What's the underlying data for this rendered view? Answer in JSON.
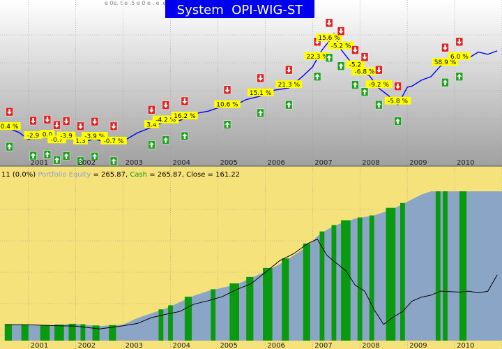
{
  "header": {
    "title": "System  OPI-WIG-ST",
    "title_bg": "#0000ee",
    "title_color": "#ffffff",
    "top_left_text": "e 0e. t e .5 e 0 e . e .e"
  },
  "colors": {
    "top_bg_top": "#ffffff",
    "top_bg_bottom": "#a8a8a8",
    "price_line": "#0000ee",
    "buy_arrow": "#20a020",
    "sell_arrow": "#e02020",
    "trade_label_bg": "#ffff00",
    "bottom_bg": "#f6e27a",
    "equity_fill": "#8ba5c6",
    "cash_bar": "#0a9a10",
    "close_line": "#000000",
    "grid": "#9a9a9a",
    "separator": "#555555"
  },
  "chart_data": [
    {
      "type": "line",
      "title": "System  OPI-WIG-ST",
      "x_labels": [
        "2001",
        "2002",
        "2003",
        "2004",
        "2005",
        "2006",
        "2007",
        "2008",
        "2009",
        "2010",
        "20"
      ],
      "x": [
        2000.5,
        2000.8,
        2001.0,
        2001.3,
        2001.6,
        2001.9,
        2002.1,
        2002.4,
        2002.7,
        2003.0,
        2003.3,
        2003.6,
        2003.9,
        2004.2,
        2004.5,
        2004.8,
        2005.0,
        2005.3,
        2005.6,
        2005.9,
        2006.2,
        2006.5,
        2006.8,
        2007.0,
        2007.2,
        2007.35,
        2007.45,
        2007.6,
        2007.8,
        2008.0,
        2008.2,
        2008.4,
        2008.6,
        2008.8,
        2009.0,
        2009.1,
        2009.3,
        2009.5,
        2009.7,
        2009.9,
        2010.1,
        2010.3,
        2010.5,
        2010.7,
        2010.9
      ],
      "series": [
        {
          "values": [
            118,
            113,
            107,
            112,
            105,
            110,
            104,
            108,
            103,
            106,
            112,
            118,
            122,
            124,
            128,
            132,
            133,
            136,
            140,
            145,
            148,
            152,
            160,
            170,
            182,
            192,
            196,
            185,
            172,
            166,
            160,
            152,
            143,
            138,
            150,
            154,
            156,
            162,
            168,
            174,
            176,
            178,
            180,
            181,
            181
          ]
        }
      ],
      "trades": [
        {
          "label": "0.4 %",
          "position": "2000.6"
        },
        {
          "label": "-2.9",
          "position": "2001.1"
        },
        {
          "label": "0.0",
          "position": "2001.4"
        },
        {
          "label": "-0.7",
          "position": "2001.6"
        },
        {
          "label": "-3.9",
          "position": "2001.8"
        },
        {
          "label": "1.3",
          "position": "2002.1"
        },
        {
          "label": "-3.9 %",
          "position": "2002.4"
        },
        {
          "label": "-0.7 %",
          "position": "2002.8"
        },
        {
          "label": "3.4",
          "position": "2003.6"
        },
        {
          "label": "-4.2 %",
          "position": "2003.9"
        },
        {
          "label": "16.2 %",
          "position": "2004.3"
        },
        {
          "label": "10.6 %",
          "position": "2005.2"
        },
        {
          "label": "15.1 %",
          "position": "2005.9"
        },
        {
          "label": "21.3 %",
          "position": "2006.5"
        },
        {
          "label": "22.3 %",
          "position": "2007.1"
        },
        {
          "label": "15.6 %",
          "position": "2007.35"
        },
        {
          "label": "-5.2 %",
          "position": "2007.6"
        },
        {
          "label": "-5.2",
          "position": "2007.9"
        },
        {
          "label": "-6.8 %",
          "position": "2008.1"
        },
        {
          "label": "-9.2 %",
          "position": "2008.4"
        },
        {
          "label": "-5.8 %",
          "position": "2008.8"
        },
        {
          "label": "58.9 %",
          "position": "2009.8"
        },
        {
          "label": "6.0 %",
          "position": "2010.1"
        }
      ]
    },
    {
      "type": "area",
      "title": "11 (0.0%) Portfolio Equity = 265.87, Cash = 265.87, Close = 161.22",
      "legend_prefix": "11 (0.0%)",
      "legend_equity_label": "Portfolio Equity",
      "legend_equity_value": "= 265.87,",
      "legend_cash_label": "Cash",
      "legend_cash_value": "= 265.87,",
      "legend_close": "Close = 161.22",
      "x_labels": [
        "2001",
        "2002",
        "2003",
        "2004",
        "2005",
        "2006",
        "2007",
        "2008",
        "2009",
        "2010",
        "20"
      ],
      "x": [
        2000.5,
        2001.0,
        2001.5,
        2002.0,
        2002.5,
        2003.0,
        2003.3,
        2003.6,
        2003.9,
        2004.2,
        2004.5,
        2004.8,
        2005.1,
        2005.4,
        2005.7,
        2006.0,
        2006.3,
        2006.6,
        2006.9,
        2007.1,
        2007.3,
        2007.5,
        2007.7,
        2007.9,
        2008.1,
        2008.3,
        2008.5,
        2008.7,
        2008.9,
        2009.1,
        2009.3,
        2009.5,
        2009.7,
        2009.9,
        2010.1,
        2010.3,
        2010.5,
        2010.7,
        2010.9
      ],
      "series": [
        {
          "name": "Portfolio Equity",
          "values": [
            100,
            100,
            99,
            101,
            98,
            100,
            108,
            114,
            120,
            128,
            136,
            142,
            146,
            150,
            158,
            166,
            175,
            186,
            198,
            210,
            218,
            224,
            228,
            232,
            234,
            236,
            240,
            244,
            250,
            256,
            262,
            266,
            266,
            266,
            266,
            266,
            266,
            266,
            266
          ]
        },
        {
          "name": "Close",
          "values": [
            100,
            101,
            97,
            99,
            95,
            97,
            103,
            108,
            112,
            118,
            124,
            130,
            136,
            142,
            152,
            165,
            178,
            190,
            200,
            206,
            188,
            175,
            168,
            150,
            140,
            120,
            100,
            108,
            118,
            128,
            134,
            138,
            140,
            142,
            141,
            140,
            141,
            141,
            161
          ]
        }
      ],
      "cash_periods": [
        [
          2000.5,
          2000.65
        ],
        [
          2000.85,
          2001.0
        ],
        [
          2001.25,
          2001.45
        ],
        [
          2001.55,
          2001.75
        ],
        [
          2001.85,
          2002.0
        ],
        [
          2002.1,
          2002.2
        ],
        [
          2002.35,
          2002.5
        ],
        [
          2002.7,
          2002.85
        ],
        [
          2003.75,
          2003.85
        ],
        [
          2003.95,
          2004.05
        ],
        [
          2004.3,
          2004.45
        ],
        [
          2004.85,
          2004.95
        ],
        [
          2005.25,
          2005.45
        ],
        [
          2005.6,
          2005.75
        ],
        [
          2005.95,
          2006.15
        ],
        [
          2006.35,
          2006.5
        ],
        [
          2006.8,
          2006.95
        ],
        [
          2007.15,
          2007.25
        ],
        [
          2007.4,
          2007.5
        ],
        [
          2007.6,
          2007.8
        ],
        [
          2007.95,
          2008.05
        ],
        [
          2008.2,
          2008.3
        ],
        [
          2008.55,
          2008.75
        ],
        [
          2008.85,
          2008.95
        ],
        [
          2009.6,
          2009.7
        ],
        [
          2009.75,
          2009.85
        ],
        [
          2010.1,
          2010.25
        ]
      ]
    }
  ]
}
